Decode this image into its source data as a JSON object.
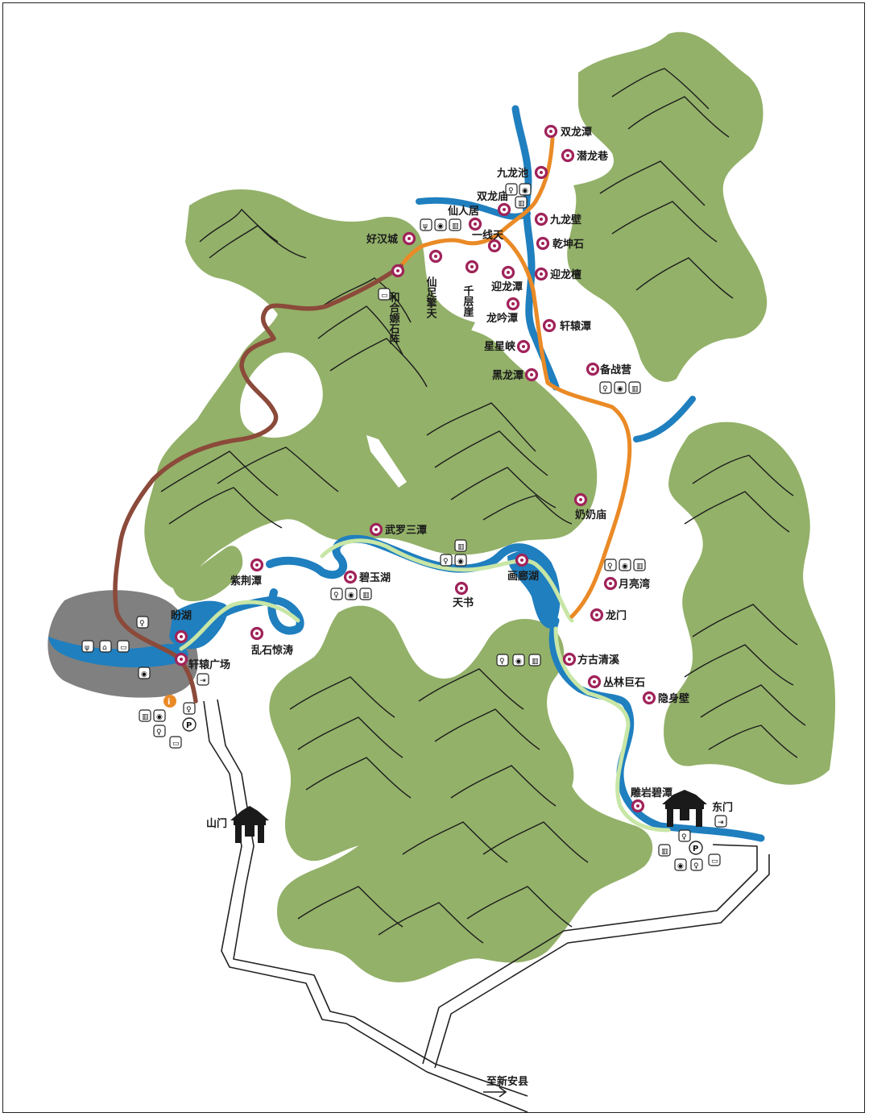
{
  "colors": {
    "mountain": "#93b169",
    "river": "#1f7fbf",
    "trail_orange": "#ea8a26",
    "trail_brown": "#8b4a3a",
    "trail_light_green": "#c8e6a6",
    "poi_ring": "#a0235a",
    "lake_gray": "#808080",
    "road": "#222222"
  },
  "attractions": [
    {
      "id": "shuanglongtan",
      "label": "双龙潭"
    },
    {
      "id": "qianlongxiang",
      "label": "潜龙巷"
    },
    {
      "id": "jiulongchi",
      "label": "九龙池"
    },
    {
      "id": "shuanglongmiao",
      "label": "双龙庙"
    },
    {
      "id": "xianrenju",
      "label": "仙人居"
    },
    {
      "id": "jiulongbi",
      "label": "九龙壁"
    },
    {
      "id": "yixiantian",
      "label": "一线天"
    },
    {
      "id": "haohancheng",
      "label": "好汉城"
    },
    {
      "id": "qiankunshi",
      "label": "乾坤石"
    },
    {
      "id": "xianzuqingtian",
      "label": "仙足擎天"
    },
    {
      "id": "qiancengya",
      "label": "千层崖"
    },
    {
      "id": "heheshizhen",
      "label": "和合嫄石阵"
    },
    {
      "id": "yinglongtan",
      "label": "迎龙潭"
    },
    {
      "id": "yinglongtan2",
      "label": "迎龙檀"
    },
    {
      "id": "longyintan",
      "label": "龙吟潭"
    },
    {
      "id": "xuanyuantan",
      "label": "轩辕潭"
    },
    {
      "id": "xingxingxia",
      "label": "星星峡"
    },
    {
      "id": "beizhanying",
      "label": "备战营"
    },
    {
      "id": "heilongtan",
      "label": "黑龙潭"
    },
    {
      "id": "nainaimiao",
      "label": "奶奶庙"
    },
    {
      "id": "wuluosantan",
      "label": "武罗三潭"
    },
    {
      "id": "zijingtan",
      "label": "紫荆潭"
    },
    {
      "id": "biyuhu",
      "label": "碧玉湖"
    },
    {
      "id": "tianshu",
      "label": "天书"
    },
    {
      "id": "hualanghu",
      "label": "画廊湖"
    },
    {
      "id": "yueliangwan",
      "label": "月亮湾"
    },
    {
      "id": "panhu",
      "label": "盼湖"
    },
    {
      "id": "longmen",
      "label": "龙门"
    },
    {
      "id": "luanshijingtao",
      "label": "乱石惊涛"
    },
    {
      "id": "fangguqingxi",
      "label": "方古清溪"
    },
    {
      "id": "xuanyuanguangchang",
      "label": "轩辕广场"
    },
    {
      "id": "conglinjushi",
      "label": "丛林巨石"
    },
    {
      "id": "yinshenbi",
      "label": "隐身壁"
    },
    {
      "id": "diaoyanbitan",
      "label": "雕岩碧潭"
    }
  ],
  "gates": {
    "main": "山门",
    "east": "东门"
  },
  "road_label": "至新安县",
  "icons": {
    "restaurant": "🍴",
    "restroom": "🚻",
    "parking": "P",
    "first_aid": "✚",
    "info": "i",
    "exit": "⇥"
  },
  "icon_names": [
    "restaurant-icon",
    "restroom-icon",
    "parking-icon",
    "info-icon",
    "exit-icon",
    "bus-icon",
    "photo-icon",
    "hotel-icon"
  ]
}
